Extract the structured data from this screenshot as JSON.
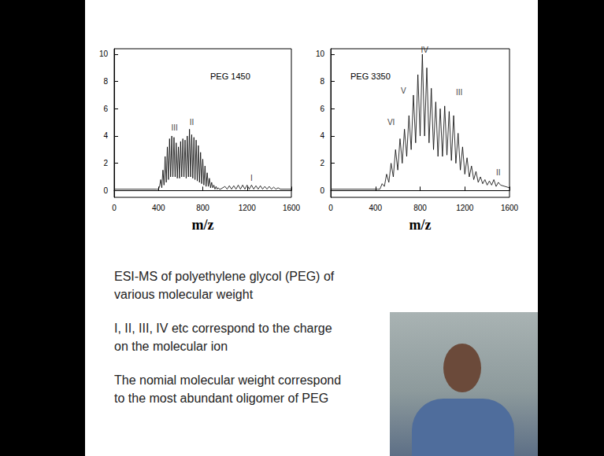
{
  "chart_data": [
    {
      "type": "line",
      "title": "PEG 1450",
      "xlabel": "m/z",
      "color": "#000000",
      "grid": false,
      "xlim": [
        0,
        1600
      ],
      "xticks": [
        0,
        400,
        800,
        1200,
        1600
      ],
      "ylim": [
        -0.5,
        10.4
      ],
      "yticks": [
        0,
        2,
        4,
        6,
        8,
        10
      ],
      "x": [
        0,
        380,
        400,
        410,
        420,
        430,
        440,
        450,
        460,
        470,
        480,
        490,
        500,
        510,
        520,
        530,
        540,
        550,
        560,
        570,
        580,
        590,
        600,
        610,
        620,
        630,
        640,
        650,
        660,
        670,
        680,
        690,
        700,
        710,
        720,
        730,
        740,
        750,
        760,
        770,
        780,
        790,
        800,
        810,
        820,
        830,
        840,
        850,
        860,
        870,
        880,
        890,
        900,
        910,
        920,
        930,
        940,
        950,
        960,
        1000,
        1020,
        1040,
        1060,
        1080,
        1100,
        1120,
        1140,
        1160,
        1180,
        1200,
        1220,
        1240,
        1260,
        1280,
        1300,
        1320,
        1340,
        1360,
        1380,
        1400,
        1420,
        1440,
        1460,
        1480,
        1500,
        1600
      ],
      "values": [
        0.1,
        0.1,
        0.1,
        0.3,
        0.8,
        0.2,
        1.5,
        0.4,
        2.5,
        0.6,
        3.2,
        0.8,
        3.8,
        1.0,
        4.0,
        1.0,
        3.9,
        1.0,
        3.5,
        0.9,
        3.2,
        0.9,
        3.6,
        1.0,
        3.8,
        1.0,
        3.7,
        0.9,
        4.0,
        1.0,
        4.5,
        1.0,
        4.1,
        0.9,
        3.9,
        0.8,
        3.7,
        0.7,
        3.3,
        0.6,
        2.8,
        0.5,
        2.3,
        0.4,
        1.8,
        0.3,
        1.3,
        0.3,
        0.9,
        0.2,
        0.6,
        0.2,
        0.4,
        0.1,
        0.3,
        0.1,
        0.2,
        0.1,
        0.1,
        0.3,
        0.1,
        0.35,
        0.1,
        0.35,
        0.1,
        0.4,
        0.1,
        0.4,
        0.1,
        0.4,
        0.1,
        0.4,
        0.1,
        0.35,
        0.1,
        0.35,
        0.1,
        0.3,
        0.1,
        0.3,
        0.1,
        0.25,
        0.1,
        0.2,
        0.1,
        0.1
      ],
      "annotations": [
        {
          "text": "III",
          "x": 545,
          "y": 4.6
        },
        {
          "text": "II",
          "x": 700,
          "y": 5.0
        },
        {
          "text": "I",
          "x": 1240,
          "y": 0.9
        }
      ]
    },
    {
      "type": "line",
      "title": "PEG 3350",
      "xlabel": "m/z",
      "color": "#000000",
      "grid": false,
      "xlim": [
        0,
        1600
      ],
      "xticks": [
        0,
        400,
        800,
        1200,
        1600
      ],
      "ylim": [
        -0.5,
        10.4
      ],
      "yticks": [
        0,
        2,
        4,
        6,
        8,
        10
      ],
      "x": [
        0,
        420,
        440,
        460,
        480,
        500,
        520,
        540,
        560,
        580,
        600,
        620,
        640,
        660,
        680,
        700,
        720,
        740,
        760,
        780,
        800,
        820,
        840,
        860,
        880,
        900,
        920,
        940,
        960,
        980,
        1000,
        1020,
        1040,
        1060,
        1080,
        1100,
        1120,
        1140,
        1160,
        1180,
        1200,
        1220,
        1240,
        1260,
        1280,
        1300,
        1320,
        1340,
        1360,
        1380,
        1400,
        1420,
        1440,
        1460,
        1480,
        1500,
        1520,
        1600
      ],
      "values": [
        0.1,
        0.1,
        0.1,
        0.5,
        0.3,
        1.2,
        0.6,
        2.0,
        1.0,
        3.0,
        1.5,
        3.8,
        2.0,
        4.5,
        2.5,
        5.5,
        3.0,
        7.0,
        3.5,
        8.5,
        4.0,
        10.0,
        4.0,
        9.0,
        3.5,
        7.5,
        3.0,
        6.5,
        2.5,
        6.0,
        2.5,
        6.2,
        2.6,
        5.8,
        2.2,
        5.5,
        2.0,
        4.2,
        1.5,
        3.2,
        1.2,
        2.4,
        1.0,
        1.8,
        0.8,
        1.4,
        0.6,
        1.0,
        0.5,
        0.8,
        0.4,
        0.7,
        0.4,
        0.8,
        0.3,
        0.6,
        0.4,
        0.2
      ],
      "annotations": [
        {
          "text": "IV",
          "x": 840,
          "y": 10.3
        },
        {
          "text": "V",
          "x": 650,
          "y": 7.3
        },
        {
          "text": "III",
          "x": 1150,
          "y": 7.2
        },
        {
          "text": "VI",
          "x": 540,
          "y": 5.0
        },
        {
          "text": "II",
          "x": 1500,
          "y": 1.3
        }
      ]
    }
  ],
  "captions": [
    [
      "ESI-MS of polyethylene glycol (PEG) of",
      "various molecular weight"
    ],
    [
      "I, II, III, IV etc correspond to the charge",
      "on the molecular ion"
    ],
    [
      "The nomial molecular weight correspond",
      "to the most abundant oligomer of PEG"
    ]
  ]
}
